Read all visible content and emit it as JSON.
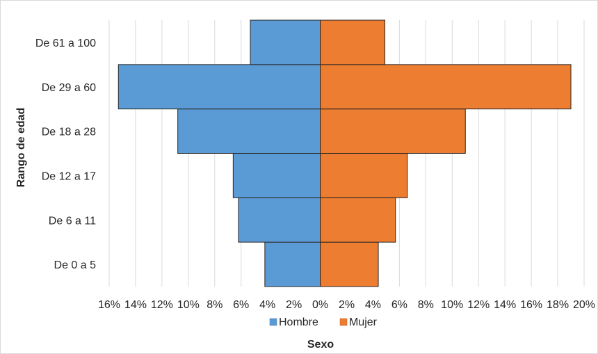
{
  "chart_data": {
    "type": "bar",
    "orientation": "horizontal-population-pyramid",
    "title": "",
    "xlabel": "Sexo",
    "ylabel": "Rango de edad",
    "categories": [
      "De 0 a 5",
      "De 6 a 11",
      "De 12 a 17",
      "De 18 a 28",
      "De 29 a 60",
      "De 61 a 100"
    ],
    "series": [
      {
        "name": "Hombre",
        "color": "#5b9bd5",
        "values": [
          4.2,
          6.2,
          6.6,
          10.8,
          15.3,
          5.3
        ]
      },
      {
        "name": "Mujer",
        "color": "#ed7d31",
        "values": [
          4.4,
          5.7,
          6.6,
          11.0,
          19.0,
          4.9
        ]
      }
    ],
    "xlim": [
      -16,
      20
    ],
    "xtick_values": [
      -16,
      -14,
      -12,
      -10,
      -8,
      -6,
      -4,
      -2,
      0,
      2,
      4,
      6,
      8,
      10,
      12,
      14,
      16,
      18,
      20
    ],
    "xtick_labels": [
      "16%",
      "14%",
      "12%",
      "10%",
      "8%",
      "6%",
      "4%",
      "2%",
      "0%",
      "2%",
      "4%",
      "6%",
      "8%",
      "10%",
      "12%",
      "14%",
      "16%",
      "18%",
      "20%"
    ],
    "grid": "vertical",
    "grid_color": "#d9d9d9",
    "legend_position": "bottom"
  }
}
